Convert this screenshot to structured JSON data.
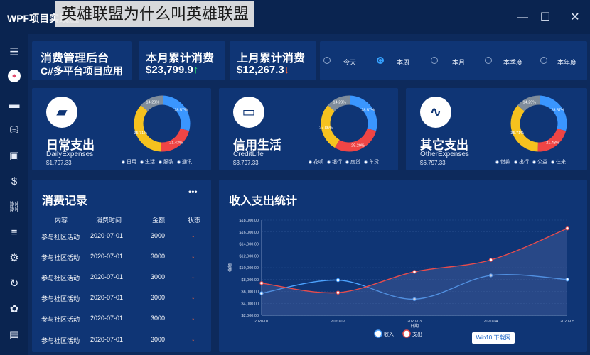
{
  "window": {
    "app_title": "WPF项目实践应",
    "overlay_title": "英雄联盟为什么叫英雄联盟",
    "controls": {
      "minimize": "—",
      "maximize": "☐",
      "close": "✕"
    }
  },
  "sidebar": {
    "items": [
      "menu-icon",
      "avatar-icon",
      "card-icon",
      "database-icon",
      "report-icon",
      "dollar-icon",
      "link-icon",
      "list-icon",
      "settings-icon",
      "refresh-icon",
      "palette-icon",
      "contact-icon"
    ]
  },
  "header": {
    "title": "消费管理后台",
    "subtitle": "C#多平台项目应用",
    "month_label": "本月累计消费",
    "month_value": "$23,799.9",
    "month_trend": "↑",
    "last_month_label": "上月累计消费",
    "last_month_value": "$12,267.3",
    "last_month_trend": "↓"
  },
  "range_filter": {
    "options": [
      "今天",
      "本周",
      "本月",
      "本季度",
      "本年度"
    ],
    "selected": "本周"
  },
  "categories": [
    {
      "icon": "wallet-icon",
      "title": "日常支出",
      "subtitle": "DailyExpenses",
      "amount": "$1,797.33",
      "legend": [
        "日用",
        "生活",
        "服装",
        "通讯"
      ],
      "slices": [
        28.57,
        21.43,
        35.71,
        14.29
      ],
      "slice_labels": [
        "28.57%",
        "21.43%",
        "35.71%",
        "14.29%"
      ]
    },
    {
      "icon": "credit-card-icon",
      "title": "信用生活",
      "subtitle": "CreditLife",
      "amount": "$3,797.33",
      "legend": [
        "花呗",
        "银行",
        "房贷",
        "车贷"
      ],
      "slices": [
        28.57,
        29.29,
        27.86,
        14.29
      ],
      "slice_labels": [
        "28.57%",
        "29.29%",
        "27.86%",
        "14.29%"
      ]
    },
    {
      "icon": "pulse-icon",
      "title": "其它支出",
      "subtitle": "OtherExpenses",
      "amount": "$6,797.33",
      "legend": [
        "借款",
        "出行",
        "公益",
        "往来"
      ],
      "slices": [
        28.57,
        21.43,
        35.71,
        14.29
      ],
      "slice_labels": [
        "28.57%",
        "21.43%",
        "35.71%",
        "14.29%"
      ]
    }
  ],
  "donut_colors": [
    "#3a96ff",
    "#ef4545",
    "#f6c21e",
    "#7f8c9b"
  ],
  "records": {
    "title": "消费记录",
    "more": "•••",
    "headers": [
      "内容",
      "消费时间",
      "金额",
      "状态"
    ],
    "rows": [
      {
        "content": "参与社区活动",
        "time": "2020-07-01",
        "amount": "3000",
        "status": "↓"
      },
      {
        "content": "参与社区活动",
        "time": "2020-07-01",
        "amount": "3000",
        "status": "↓"
      },
      {
        "content": "参与社区活动",
        "time": "2020-07-01",
        "amount": "3000",
        "status": "↓"
      },
      {
        "content": "参与社区活动",
        "time": "2020-07-01",
        "amount": "3000",
        "status": "↓"
      },
      {
        "content": "参与社区活动",
        "time": "2020-07-01",
        "amount": "3000",
        "status": "↓"
      },
      {
        "content": "参与社区活动",
        "time": "2020-07-01",
        "amount": "3000",
        "status": "↓"
      }
    ]
  },
  "chart_data": {
    "type": "line",
    "title": "收入支出统计",
    "xlabel": "日期",
    "ylabel": "金额",
    "categories": [
      "2020-01",
      "2020-02",
      "2020-03",
      "2020-04",
      "2020-05"
    ],
    "y_ticks": [
      "$2,000.00",
      "$4,000.00",
      "$6,000.00",
      "$8,000.00",
      "$10,000.00",
      "$12,000.00",
      "$14,000.00",
      "$16,000.00",
      "$18,000.00"
    ],
    "ylim": [
      2000,
      18000
    ],
    "series": [
      {
        "name": "收入",
        "color": "#4da3ff",
        "values": [
          5700,
          7900,
          4700,
          8700,
          8000
        ]
      },
      {
        "name": "支出",
        "color": "#e84c4c",
        "values": [
          7400,
          5800,
          9300,
          11300,
          16600
        ]
      }
    ],
    "legend_position": "bottom"
  },
  "watermark": "Win10 下载网"
}
